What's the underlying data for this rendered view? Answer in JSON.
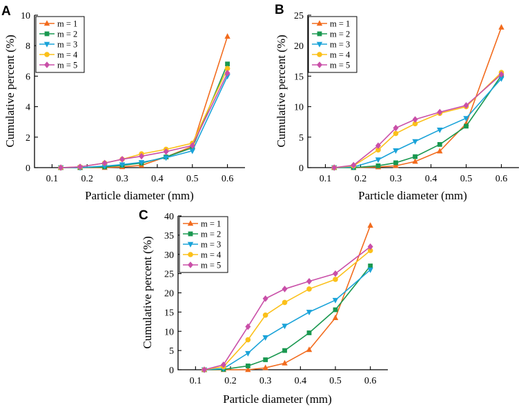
{
  "colors": {
    "m1": "#f26b1d",
    "m2": "#1a9850",
    "m3": "#1aa3d9",
    "m4": "#fbc01a",
    "m5": "#c94fa8"
  },
  "chart_data": [
    {
      "panel": "A",
      "type": "line",
      "xlabel": "Particle diameter (mm)",
      "ylabel": "Cumulative percent (%)",
      "xlim": [
        0.05,
        0.65
      ],
      "ylim": [
        0,
        10
      ],
      "xticks": [
        0.1,
        0.2,
        0.3,
        0.4,
        0.5,
        0.6
      ],
      "yticks": [
        0,
        2,
        4,
        6,
        8,
        10
      ],
      "x": [
        0.125,
        0.18,
        0.25,
        0.3,
        0.355,
        0.425,
        0.5,
        0.6
      ],
      "legend": "top-left",
      "series": [
        {
          "name": "m = 1",
          "marker": "triangle-up",
          "color": "#f26b1d",
          "values": [
            0,
            0,
            0,
            0.05,
            0.15,
            0.7,
            1.4,
            8.6
          ]
        },
        {
          "name": "m = 2",
          "marker": "square",
          "color": "#1a9850",
          "values": [
            0,
            0,
            0.05,
            0.15,
            0.3,
            0.7,
            1.3,
            6.8
          ]
        },
        {
          "name": "m = 3",
          "marker": "triangle-down",
          "color": "#1aa3d9",
          "values": [
            0,
            0,
            0.1,
            0.2,
            0.35,
            0.65,
            1.1,
            6.0
          ]
        },
        {
          "name": "m = 4",
          "marker": "circle",
          "color": "#fbc01a",
          "values": [
            0,
            0.05,
            0.3,
            0.55,
            0.9,
            1.2,
            1.6,
            6.5
          ]
        },
        {
          "name": "m = 5",
          "marker": "diamond",
          "color": "#c94fa8",
          "values": [
            0,
            0.05,
            0.3,
            0.55,
            0.75,
            1.05,
            1.45,
            6.2
          ]
        }
      ]
    },
    {
      "panel": "B",
      "type": "line",
      "xlabel": "Particle diameter (mm)",
      "ylabel": "Cumulative percent (%)",
      "xlim": [
        0.05,
        0.65
      ],
      "ylim": [
        0,
        25
      ],
      "xticks": [
        0.1,
        0.2,
        0.3,
        0.4,
        0.5,
        0.6
      ],
      "yticks": [
        0,
        5,
        10,
        15,
        20,
        25
      ],
      "x": [
        0.125,
        0.18,
        0.25,
        0.3,
        0.355,
        0.425,
        0.5,
        0.6
      ],
      "legend": "top-left",
      "series": [
        {
          "name": "m = 1",
          "marker": "triangle-up",
          "color": "#f26b1d",
          "values": [
            0,
            0,
            0.1,
            0.3,
            1.0,
            2.7,
            7.2,
            23.0
          ]
        },
        {
          "name": "m = 2",
          "marker": "square",
          "color": "#1a9850",
          "values": [
            0,
            0,
            0.3,
            0.8,
            1.8,
            3.8,
            6.8,
            15.1
          ]
        },
        {
          "name": "m = 3",
          "marker": "triangle-down",
          "color": "#1aa3d9",
          "values": [
            0,
            0.1,
            1.3,
            2.8,
            4.3,
            6.2,
            8.1,
            14.6
          ]
        },
        {
          "name": "m = 4",
          "marker": "circle",
          "color": "#fbc01a",
          "values": [
            0,
            0.3,
            2.9,
            5.6,
            7.2,
            8.9,
            10.0,
            15.6
          ]
        },
        {
          "name": "m = 5",
          "marker": "diamond",
          "color": "#c94fa8",
          "values": [
            0,
            0.4,
            3.6,
            6.5,
            7.9,
            9.1,
            10.2,
            15.3
          ]
        }
      ]
    },
    {
      "panel": "C",
      "type": "line",
      "xlabel": "Particle diameter (mm)",
      "ylabel": "Cumulative percent (%)",
      "xlim": [
        0.05,
        0.65
      ],
      "ylim": [
        0,
        40
      ],
      "xticks": [
        0.1,
        0.2,
        0.3,
        0.4,
        0.5,
        0.6
      ],
      "yticks": [
        0,
        5,
        10,
        15,
        20,
        25,
        30,
        35,
        40
      ],
      "x": [
        0.125,
        0.18,
        0.25,
        0.3,
        0.355,
        0.425,
        0.5,
        0.6
      ],
      "legend": "top-left",
      "series": [
        {
          "name": "m = 1",
          "marker": "triangle-up",
          "color": "#f26b1d",
          "values": [
            0,
            0,
            0,
            0.5,
            1.7,
            5.2,
            13.5,
            37.5
          ]
        },
        {
          "name": "m = 2",
          "marker": "square",
          "color": "#1a9850",
          "values": [
            0,
            0.1,
            1.0,
            2.6,
            5.0,
            9.6,
            15.6,
            27.0
          ]
        },
        {
          "name": "m = 3",
          "marker": "triangle-down",
          "color": "#1aa3d9",
          "values": [
            0,
            0.3,
            4.3,
            8.4,
            11.4,
            15.0,
            18.1,
            26.0
          ]
        },
        {
          "name": "m = 4",
          "marker": "circle",
          "color": "#fbc01a",
          "values": [
            0,
            0.8,
            7.8,
            14.2,
            17.5,
            21.0,
            23.5,
            31.0
          ]
        },
        {
          "name": "m = 5",
          "marker": "diamond",
          "color": "#c94fa8",
          "values": [
            0,
            1.3,
            11.2,
            18.5,
            21.0,
            23.0,
            25.0,
            32.0
          ]
        }
      ]
    }
  ]
}
